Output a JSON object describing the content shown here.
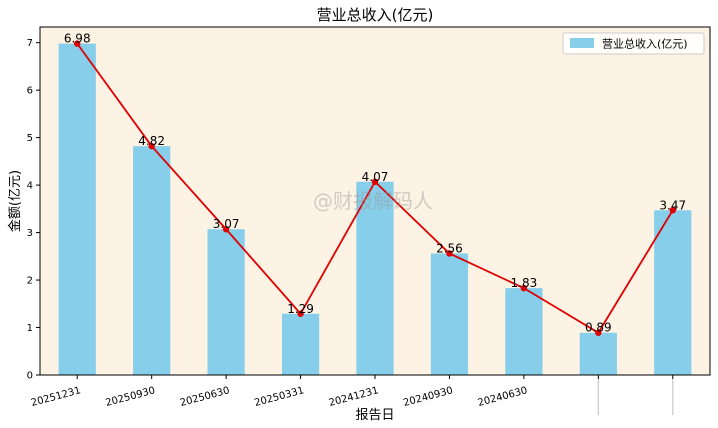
{
  "chart_data": {
    "type": "bar",
    "title": "营业总收入(亿元)",
    "xlabel": "报告日",
    "ylabel": "金额(亿元)",
    "categories": [
      "20251231",
      "20250930",
      "20250630",
      "20250331",
      "20241231",
      "20240930",
      "20240630",
      "",
      ""
    ],
    "series": [
      {
        "name": "营业总收入(亿元)",
        "values": [
          6.98,
          4.82,
          3.07,
          1.29,
          4.07,
          2.56,
          1.83,
          0.89,
          3.47
        ],
        "data_labels": [
          "6.98",
          "4.82",
          "3.07",
          "1.29",
          "4.07",
          "2.56",
          "1.83",
          "0.89",
          "3.47"
        ]
      }
    ],
    "ylim": [
      0,
      7.33
    ],
    "yticks": [
      0,
      1,
      2,
      3,
      4,
      5,
      6,
      7
    ],
    "grid": false,
    "legend_position": "top-right",
    "overlay_line": true
  },
  "colors": {
    "bar": "#87ceeb",
    "line": "#e00000",
    "plot_background": "#fdf3e4"
  },
  "watermark": "@财报解码人"
}
